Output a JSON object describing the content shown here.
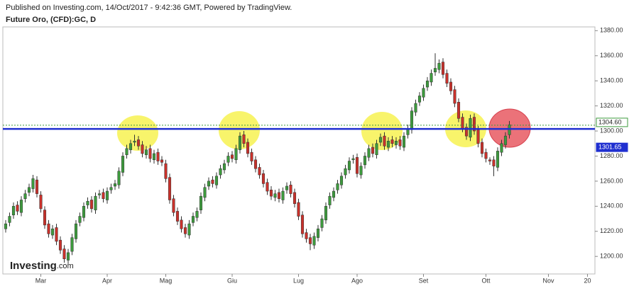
{
  "header": {
    "published": "Published on Investing.com, 14/Oct/2017 - 9:42:36 GMT, Powered by TradingView.",
    "instrument": "Future Oro, (CFD):GC, D"
  },
  "logo": {
    "name": "Investing",
    "suffix": ".com"
  },
  "chart_data": {
    "type": "candlestick",
    "up_color": "#3d9a3d",
    "down_color": "#c8312b",
    "grid": false,
    "ylim": [
      1186,
      1383
    ],
    "yticks": [
      {
        "value": 1200,
        "label": "1200.00"
      },
      {
        "value": 1220,
        "label": "1220.00"
      },
      {
        "value": 1240,
        "label": "1240.00"
      },
      {
        "value": 1260,
        "label": "1260.00"
      },
      {
        "value": 1280,
        "label": "1280.00"
      },
      {
        "value": 1300,
        "label": "1300.00"
      },
      {
        "value": 1320,
        "label": "1320.00"
      },
      {
        "value": 1340,
        "label": "1340.00"
      },
      {
        "value": 1360,
        "label": "1360.00"
      },
      {
        "value": 1380,
        "label": "1380.00"
      }
    ],
    "reference_lines": [
      {
        "value": 1304.6,
        "label": "1304.60",
        "color": "#3d9a3d",
        "style": "dotted"
      },
      {
        "value": 1301.65,
        "label": "1301.65",
        "color": "#1f2fd0",
        "style": "solid"
      }
    ],
    "categories": [
      null,
      null,
      null,
      null,
      null,
      null,
      null,
      null,
      null,
      "Mar",
      null,
      null,
      null,
      null,
      null,
      null,
      null,
      null,
      null,
      null,
      null,
      null,
      null,
      null,
      null,
      null,
      "Apr",
      null,
      null,
      null,
      null,
      null,
      null,
      null,
      null,
      null,
      null,
      null,
      null,
      null,
      null,
      "Mag",
      null,
      null,
      null,
      null,
      null,
      null,
      null,
      null,
      null,
      null,
      null,
      null,
      null,
      null,
      null,
      null,
      "Giu",
      null,
      null,
      null,
      null,
      null,
      null,
      null,
      null,
      null,
      null,
      null,
      null,
      null,
      null,
      null,
      null,
      "Lug",
      null,
      null,
      null,
      null,
      null,
      null,
      null,
      null,
      null,
      null,
      null,
      null,
      null,
      null,
      "Ago",
      null,
      null,
      null,
      null,
      null,
      null,
      null,
      null,
      null,
      null,
      null,
      null,
      null,
      null,
      null,
      null,
      "Set",
      null,
      null,
      null,
      null,
      null,
      null,
      null,
      null,
      null,
      null,
      null,
      null,
      null,
      null,
      null,
      "Ott",
      null,
      null,
      null,
      null,
      null,
      null,
      null,
      null,
      null,
      null,
      null,
      null,
      null,
      null,
      null,
      "Nov",
      null,
      null,
      null,
      null,
      null,
      null,
      null,
      null,
      null,
      "20",
      null
    ],
    "open": [
      1222,
      1227,
      1233,
      1241,
      1235,
      1246,
      1251,
      1254,
      1261,
      1249,
      1237,
      1226,
      1217,
      1223,
      1213,
      1206,
      1197,
      1204,
      1214,
      1227,
      1231,
      1241,
      1245,
      1237,
      1249,
      1251,
      1245,
      1253,
      1256,
      1257,
      1267,
      1281,
      1285,
      1291,
      1293,
      1289,
      1281,
      1286,
      1277,
      1283,
      1277,
      1274,
      1263,
      1246,
      1236,
      1229,
      1223,
      1217,
      1227,
      1231,
      1237,
      1247,
      1256,
      1261,
      1257,
      1265,
      1269,
      1275,
      1281,
      1277,
      1285,
      1297,
      1291,
      1283,
      1277,
      1271,
      1266,
      1259,
      1253,
      1247,
      1251,
      1245,
      1253,
      1257,
      1251,
      1243,
      1233,
      1219,
      1215,
      1209,
      1215,
      1223,
      1229,
      1241,
      1247,
      1253,
      1257,
      1265,
      1269,
      1277,
      1279,
      1265,
      1273,
      1279,
      1287,
      1281,
      1291,
      1296,
      1287,
      1293,
      1289,
      1293,
      1287,
      1297,
      1301,
      1315,
      1323,
      1327,
      1335,
      1339,
      1347,
      1349,
      1355,
      1346,
      1339,
      1333,
      1323,
      1311,
      1303,
      1295,
      1311,
      1301,
      1291,
      1283,
      1277,
      1277,
      1271,
      1283,
      1289,
      1297,
      null,
      null,
      null,
      null,
      null,
      null,
      null,
      null,
      null,
      null,
      null,
      null,
      null,
      null,
      null,
      null,
      null,
      null,
      null,
      null,
      null
    ],
    "high": [
      1229,
      1235,
      1243,
      1244,
      1248,
      1253,
      1258,
      1265,
      1264,
      1252,
      1240,
      1229,
      1225,
      1226,
      1216,
      1209,
      1206,
      1218,
      1229,
      1235,
      1243,
      1247,
      1248,
      1251,
      1253,
      1254,
      1255,
      1258,
      1261,
      1271,
      1283,
      1289,
      1293,
      1297,
      1296,
      1292,
      1288,
      1289,
      1285,
      1286,
      1280,
      1277,
      1266,
      1249,
      1239,
      1232,
      1226,
      1229,
      1235,
      1239,
      1251,
      1258,
      1263,
      1264,
      1267,
      1273,
      1277,
      1283,
      1284,
      1289,
      1299,
      1300,
      1294,
      1286,
      1280,
      1274,
      1269,
      1262,
      1256,
      1253,
      1254,
      1255,
      1259,
      1260,
      1254,
      1246,
      1236,
      1222,
      1218,
      1219,
      1225,
      1233,
      1243,
      1251,
      1255,
      1261,
      1267,
      1273,
      1279,
      1281,
      1282,
      1275,
      1283,
      1289,
      1290,
      1293,
      1298,
      1299,
      1295,
      1296,
      1295,
      1296,
      1299,
      1305,
      1319,
      1325,
      1331,
      1337,
      1343,
      1349,
      1362,
      1357,
      1358,
      1349,
      1342,
      1336,
      1326,
      1314,
      1306,
      1313,
      1314,
      1304,
      1294,
      1286,
      1279,
      1280,
      1287,
      1293,
      1299,
      1308,
      null,
      null,
      null,
      null,
      null,
      null,
      null,
      null,
      null,
      null,
      null,
      null,
      null,
      null,
      null,
      null,
      null,
      null,
      null,
      null,
      null
    ],
    "low": [
      1219,
      1224,
      1230,
      1233,
      1232,
      1243,
      1248,
      1251,
      1247,
      1235,
      1222,
      1215,
      1214,
      1209,
      1202,
      1195,
      1194,
      1201,
      1211,
      1224,
      1228,
      1238,
      1235,
      1234,
      1246,
      1243,
      1242,
      1250,
      1253,
      1254,
      1264,
      1278,
      1282,
      1288,
      1285,
      1279,
      1278,
      1275,
      1274,
      1273,
      1272,
      1259,
      1242,
      1232,
      1225,
      1219,
      1215,
      1214,
      1224,
      1228,
      1234,
      1244,
      1253,
      1255,
      1254,
      1262,
      1266,
      1272,
      1275,
      1274,
      1282,
      1287,
      1279,
      1273,
      1267,
      1262,
      1255,
      1249,
      1245,
      1244,
      1243,
      1242,
      1250,
      1247,
      1239,
      1229,
      1215,
      1211,
      1205,
      1206,
      1212,
      1220,
      1226,
      1238,
      1244,
      1250,
      1254,
      1262,
      1266,
      1274,
      1263,
      1262,
      1270,
      1276,
      1279,
      1278,
      1288,
      1285,
      1284,
      1287,
      1286,
      1285,
      1284,
      1294,
      1298,
      1312,
      1320,
      1324,
      1332,
      1336,
      1344,
      1346,
      1342,
      1335,
      1329,
      1319,
      1307,
      1299,
      1293,
      1292,
      1297,
      1287,
      1279,
      1275,
      1273,
      1264,
      1268,
      1280,
      1286,
      1294,
      null,
      null,
      null,
      null,
      null,
      null,
      null,
      null,
      null,
      null,
      null,
      null,
      null,
      null,
      null,
      null,
      null,
      null,
      null,
      null,
      null
    ],
    "close": [
      1226,
      1232,
      1240,
      1236,
      1245,
      1250,
      1255,
      1262,
      1250,
      1238,
      1225,
      1218,
      1222,
      1212,
      1205,
      1198,
      1203,
      1215,
      1226,
      1232,
      1240,
      1244,
      1238,
      1248,
      1250,
      1246,
      1252,
      1255,
      1258,
      1268,
      1280,
      1286,
      1290,
      1292,
      1288,
      1282,
      1285,
      1278,
      1282,
      1276,
      1275,
      1262,
      1245,
      1235,
      1228,
      1222,
      1218,
      1226,
      1232,
      1236,
      1248,
      1255,
      1260,
      1258,
      1264,
      1270,
      1274,
      1280,
      1278,
      1286,
      1296,
      1290,
      1282,
      1276,
      1270,
      1265,
      1258,
      1252,
      1248,
      1250,
      1246,
      1252,
      1256,
      1250,
      1242,
      1232,
      1218,
      1214,
      1210,
      1216,
      1222,
      1230,
      1240,
      1248,
      1252,
      1258,
      1264,
      1270,
      1276,
      1278,
      1266,
      1272,
      1280,
      1286,
      1282,
      1290,
      1295,
      1288,
      1292,
      1290,
      1292,
      1288,
      1296,
      1302,
      1316,
      1322,
      1328,
      1334,
      1340,
      1346,
      1350,
      1354,
      1345,
      1338,
      1332,
      1322,
      1310,
      1302,
      1296,
      1310,
      1300,
      1290,
      1282,
      1278,
      1276,
      1272,
      1284,
      1290,
      1296,
      1305,
      null,
      null,
      null,
      null,
      null,
      null,
      null,
      null,
      null,
      null,
      null,
      null,
      null,
      null,
      null,
      null,
      null,
      null,
      null,
      null,
      null
    ]
  }
}
